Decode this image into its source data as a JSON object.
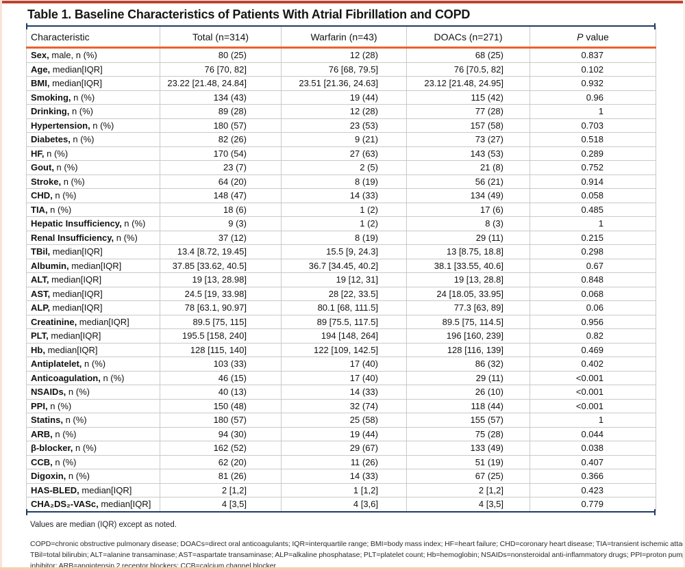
{
  "title": "Table 1. Baseline Characteristics of Patients With Atrial Fibrillation and COPD",
  "colors": {
    "top_accent_bar": "#bf432d",
    "navy_rule": "#1f3a63",
    "header_orange_rule": "#e8622a",
    "grid_line": "#c9c9c9",
    "bottom_edge": "#f8cdb8"
  },
  "table": {
    "columns": [
      "Characteristic",
      "Total (n=314)",
      "Warfarin (n=43)",
      "DOACs (n=271)"
    ],
    "p_header": {
      "italic": "P",
      "rest": " value"
    },
    "rows": [
      {
        "label_bold": "Sex,",
        "label_rest": " male, n (%)",
        "total": "80 (25)",
        "warfarin": "12 (28)",
        "doacs": "68 (25)",
        "p": "0.837"
      },
      {
        "label_bold": "Age,",
        "label_rest": " median[IQR]",
        "total": "76 [70, 82]",
        "warfarin": "76 [68, 79.5]",
        "doacs": "76 [70.5, 82]",
        "p": "0.102"
      },
      {
        "label_bold": "BMI,",
        "label_rest": " median[IQR]",
        "total": "23.22 [21.48, 24.84]",
        "warfarin": "23.51 [21.36, 24.63]",
        "doacs": "23.12 [21.48, 24.95]",
        "p": "0.932"
      },
      {
        "label_bold": "Smoking,",
        "label_rest": " n (%)",
        "total": "134 (43)",
        "warfarin": "19 (44)",
        "doacs": "115 (42)",
        "p": "0.96"
      },
      {
        "label_bold": "Drinking,",
        "label_rest": " n (%)",
        "total": "89 (28)",
        "warfarin": "12 (28)",
        "doacs": "77 (28)",
        "p": "1"
      },
      {
        "label_bold": "Hypertension,",
        "label_rest": " n (%)",
        "total": "180 (57)",
        "warfarin": "23 (53)",
        "doacs": "157 (58)",
        "p": "0.703"
      },
      {
        "label_bold": "Diabetes,",
        "label_rest": " n (%)",
        "total": "82 (26)",
        "warfarin": "9 (21)",
        "doacs": "73 (27)",
        "p": "0.518"
      },
      {
        "label_bold": "HF,",
        "label_rest": " n (%)",
        "total": "170 (54)",
        "warfarin": "27 (63)",
        "doacs": "143 (53)",
        "p": "0.289"
      },
      {
        "label_bold": "Gout,",
        "label_rest": " n (%)",
        "total": "23 (7)",
        "warfarin": "2 (5)",
        "doacs": "21 (8)",
        "p": "0.752"
      },
      {
        "label_bold": "Stroke,",
        "label_rest": " n (%)",
        "total": "64 (20)",
        "warfarin": "8 (19)",
        "doacs": "56 (21)",
        "p": "0.914"
      },
      {
        "label_bold": "CHD,",
        "label_rest": " n (%)",
        "total": "148 (47)",
        "warfarin": "14 (33)",
        "doacs": "134 (49)",
        "p": "0.058"
      },
      {
        "label_bold": "TIA,",
        "label_rest": " n (%)",
        "total": "18 (6)",
        "warfarin": "1 (2)",
        "doacs": "17 (6)",
        "p": "0.485"
      },
      {
        "label_bold": "Hepatic Insufficiency,",
        "label_rest": " n (%)",
        "total": "9 (3)",
        "warfarin": "1 (2)",
        "doacs": "8 (3)",
        "p": "1"
      },
      {
        "label_bold": "Renal Insufficiency,",
        "label_rest": " n (%)",
        "total": "37 (12)",
        "warfarin": "8 (19)",
        "doacs": "29 (11)",
        "p": "0.215"
      },
      {
        "label_bold": "TBil,",
        "label_rest": " median[IQR]",
        "total": "13.4 [8.72, 19.45]",
        "warfarin": "15.5 [9, 24.3]",
        "doacs": "13 [8.75, 18.8]",
        "p": "0.298"
      },
      {
        "label_bold": "Albumin,",
        "label_rest": " median[IQR]",
        "total": "37.85 [33.62, 40.5]",
        "warfarin": "36.7 [34.45, 40.2]",
        "doacs": "38.1 [33.55, 40.6]",
        "p": "0.67"
      },
      {
        "label_bold": "ALT,",
        "label_rest": " median[IQR]",
        "total": "19 [13, 28.98]",
        "warfarin": "19 [12, 31]",
        "doacs": "19 [13, 28.8]",
        "p": "0.848"
      },
      {
        "label_bold": "AST,",
        "label_rest": " median[IQR]",
        "total": "24.5 [19, 33.98]",
        "warfarin": "28 [22, 33.5]",
        "doacs": "24 [18.05, 33.95]",
        "p": "0.068"
      },
      {
        "label_bold": "ALP,",
        "label_rest": " median[IQR]",
        "total": "78 [63.1, 90.97]",
        "warfarin": "80.1 [68, 111.5]",
        "doacs": "77.3 [63, 89]",
        "p": "0.06"
      },
      {
        "label_bold": "Creatinine,",
        "label_rest": " median[IQR]",
        "total": "89.5 [75, 115]",
        "warfarin": "89 [75.5, 117.5]",
        "doacs": "89.5 [75, 114.5]",
        "p": "0.956"
      },
      {
        "label_bold": "PLT,",
        "label_rest": " median[IQR]",
        "total": "195.5 [158, 240]",
        "warfarin": "194 [148, 264]",
        "doacs": "196 [160, 239]",
        "p": "0.82"
      },
      {
        "label_bold": "Hb,",
        "label_rest": " median[IQR]",
        "total": "128 [115, 140]",
        "warfarin": "122 [109, 142.5]",
        "doacs": "128 [116, 139]",
        "p": "0.469"
      },
      {
        "label_bold": "Antiplatelet,",
        "label_rest": " n (%)",
        "total": "103 (33)",
        "warfarin": "17 (40)",
        "doacs": "86 (32)",
        "p": "0.402"
      },
      {
        "label_bold": "Anticoagulation,",
        "label_rest": " n (%)",
        "total": "46 (15)",
        "warfarin": "17 (40)",
        "doacs": "29 (11)",
        "p": "<0.001"
      },
      {
        "label_bold": "NSAIDs,",
        "label_rest": " n (%)",
        "total": "40 (13)",
        "warfarin": "14 (33)",
        "doacs": "26 (10)",
        "p": "<0.001"
      },
      {
        "label_bold": "PPI,",
        "label_rest": " n (%)",
        "total": "150 (48)",
        "warfarin": "32 (74)",
        "doacs": "118 (44)",
        "p": "<0.001"
      },
      {
        "label_bold": "Statins,",
        "label_rest": " n (%)",
        "total": "180 (57)",
        "warfarin": "25 (58)",
        "doacs": "155 (57)",
        "p": "1"
      },
      {
        "label_bold": "ARB,",
        "label_rest": " n (%)",
        "total": "94 (30)",
        "warfarin": "19 (44)",
        "doacs": "75 (28)",
        "p": "0.044"
      },
      {
        "label_bold": "β-blocker,",
        "label_rest": " n (%)",
        "total": "162 (52)",
        "warfarin": "29 (67)",
        "doacs": "133 (49)",
        "p": "0.038"
      },
      {
        "label_bold": "CCB,",
        "label_rest": " n (%)",
        "total": "62 (20)",
        "warfarin": "11 (26)",
        "doacs": "51 (19)",
        "p": "0.407"
      },
      {
        "label_bold": "Digoxin,",
        "label_rest": " n (%)",
        "total": "81 (26)",
        "warfarin": "14 (33)",
        "doacs": "67 (25)",
        "p": "0.366"
      },
      {
        "label_bold": "HAS-BLED,",
        "label_rest": " median[IQR]",
        "total": "2 [1,2]",
        "warfarin": "1 [1,2]",
        "doacs": "2 [1,2]",
        "p": "0.423"
      },
      {
        "label_bold": "CHA₂DS₂-VASc,",
        "label_rest": " median[IQR]",
        "total": "4 [3,5]",
        "warfarin": "4 [3,6]",
        "doacs": "4 [3,5]",
        "p": "0.779"
      }
    ]
  },
  "notes": {
    "values_note": "Values are median (IQR) except as noted.",
    "abbreviation_lines": [
      "COPD=chronic obstructive pulmonary disease; DOACs=direct oral anticoagulants; IQR=interquartile range; BMI=body mass index; HF=heart failure; CHD=coronary heart disease; TIA=transient ischemic attack;",
      "TBil=total bilirubin; ALT=alanine transaminase; AST=aspartate transaminase; ALP=alkaline phosphatase; PLT=platelet count; Hb=hemoglobin; NSAIDs=nonsteroidal anti-inflammatory drugs; PPI=proton pump",
      "inhibitor; ARB=angiotensin 2 receptor blockers; CCB=calcium channel blocker"
    ]
  }
}
